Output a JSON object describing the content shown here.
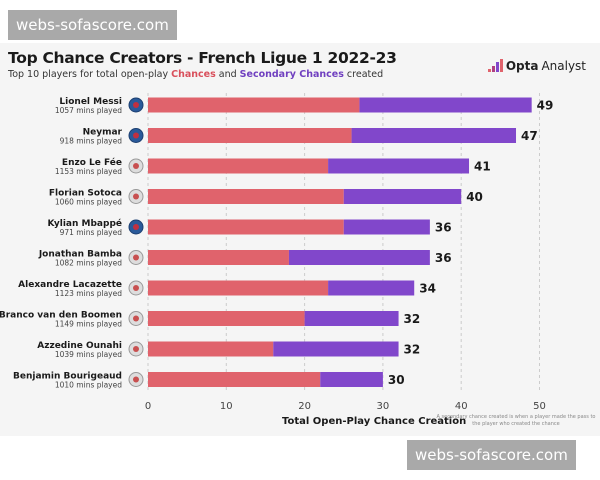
{
  "watermarks": [
    "webs-sofascore.com",
    "webs-sofascore.com"
  ],
  "header": {
    "title": "Top Chance Creators - French Ligue 1 2022-23",
    "subtitle_pre": "Top 10 players for total open-play ",
    "subtitle_chances": "Chances",
    "subtitle_and": " and ",
    "subtitle_secondary": "Secondary Chances",
    "subtitle_post": " created",
    "logo_bold": "Opta",
    "logo_light": "Analyst"
  },
  "colors": {
    "chances": "#e0636c",
    "secondary": "#8147cb"
  },
  "chart_data": {
    "type": "bar",
    "orientation": "horizontal",
    "stacked": true,
    "xlabel": "Total Open-Play Chance Creation",
    "xlim": [
      0,
      50
    ],
    "xticks": [
      "0",
      "10",
      "20",
      "30",
      "40",
      "50"
    ],
    "grid": true,
    "legend": "in subtitle",
    "footnote": "A secondary chance created is when a player made the pass to the player who created the chance",
    "categories": [
      "Lionel Messi",
      "Neymar",
      "Enzo Le Fée",
      "Florian Sotoca",
      "Kylian Mbappé",
      "Jonathan Bamba",
      "Alexandre Lacazette",
      "Branco van den Boomen",
      "Azzedine Ounahi",
      "Benjamin Bourigeaud"
    ],
    "minutes": [
      "1057 mins played",
      "918 mins played",
      "1153 mins played",
      "1060 mins played",
      "971 mins played",
      "1082 mins played",
      "1123 mins played",
      "1149 mins played",
      "1039 mins played",
      "1010 mins played"
    ],
    "clubs": [
      "psg-crest-icon",
      "psg-crest-icon",
      "lorient-crest-icon",
      "lens-crest-icon",
      "psg-crest-icon",
      "lille-crest-icon",
      "lyon-crest-icon",
      "toulouse-crest-icon",
      "angers-crest-icon",
      "rennes-crest-icon"
    ],
    "series": [
      {
        "name": "Chances",
        "values": [
          27,
          26,
          23,
          25,
          25,
          18,
          23,
          20,
          16,
          22
        ]
      },
      {
        "name": "Secondary Chances",
        "values": [
          22,
          21,
          18,
          15,
          11,
          18,
          11,
          12,
          16,
          8
        ]
      }
    ],
    "totals": [
      49,
      47,
      41,
      40,
      36,
      36,
      34,
      32,
      32,
      30
    ]
  }
}
